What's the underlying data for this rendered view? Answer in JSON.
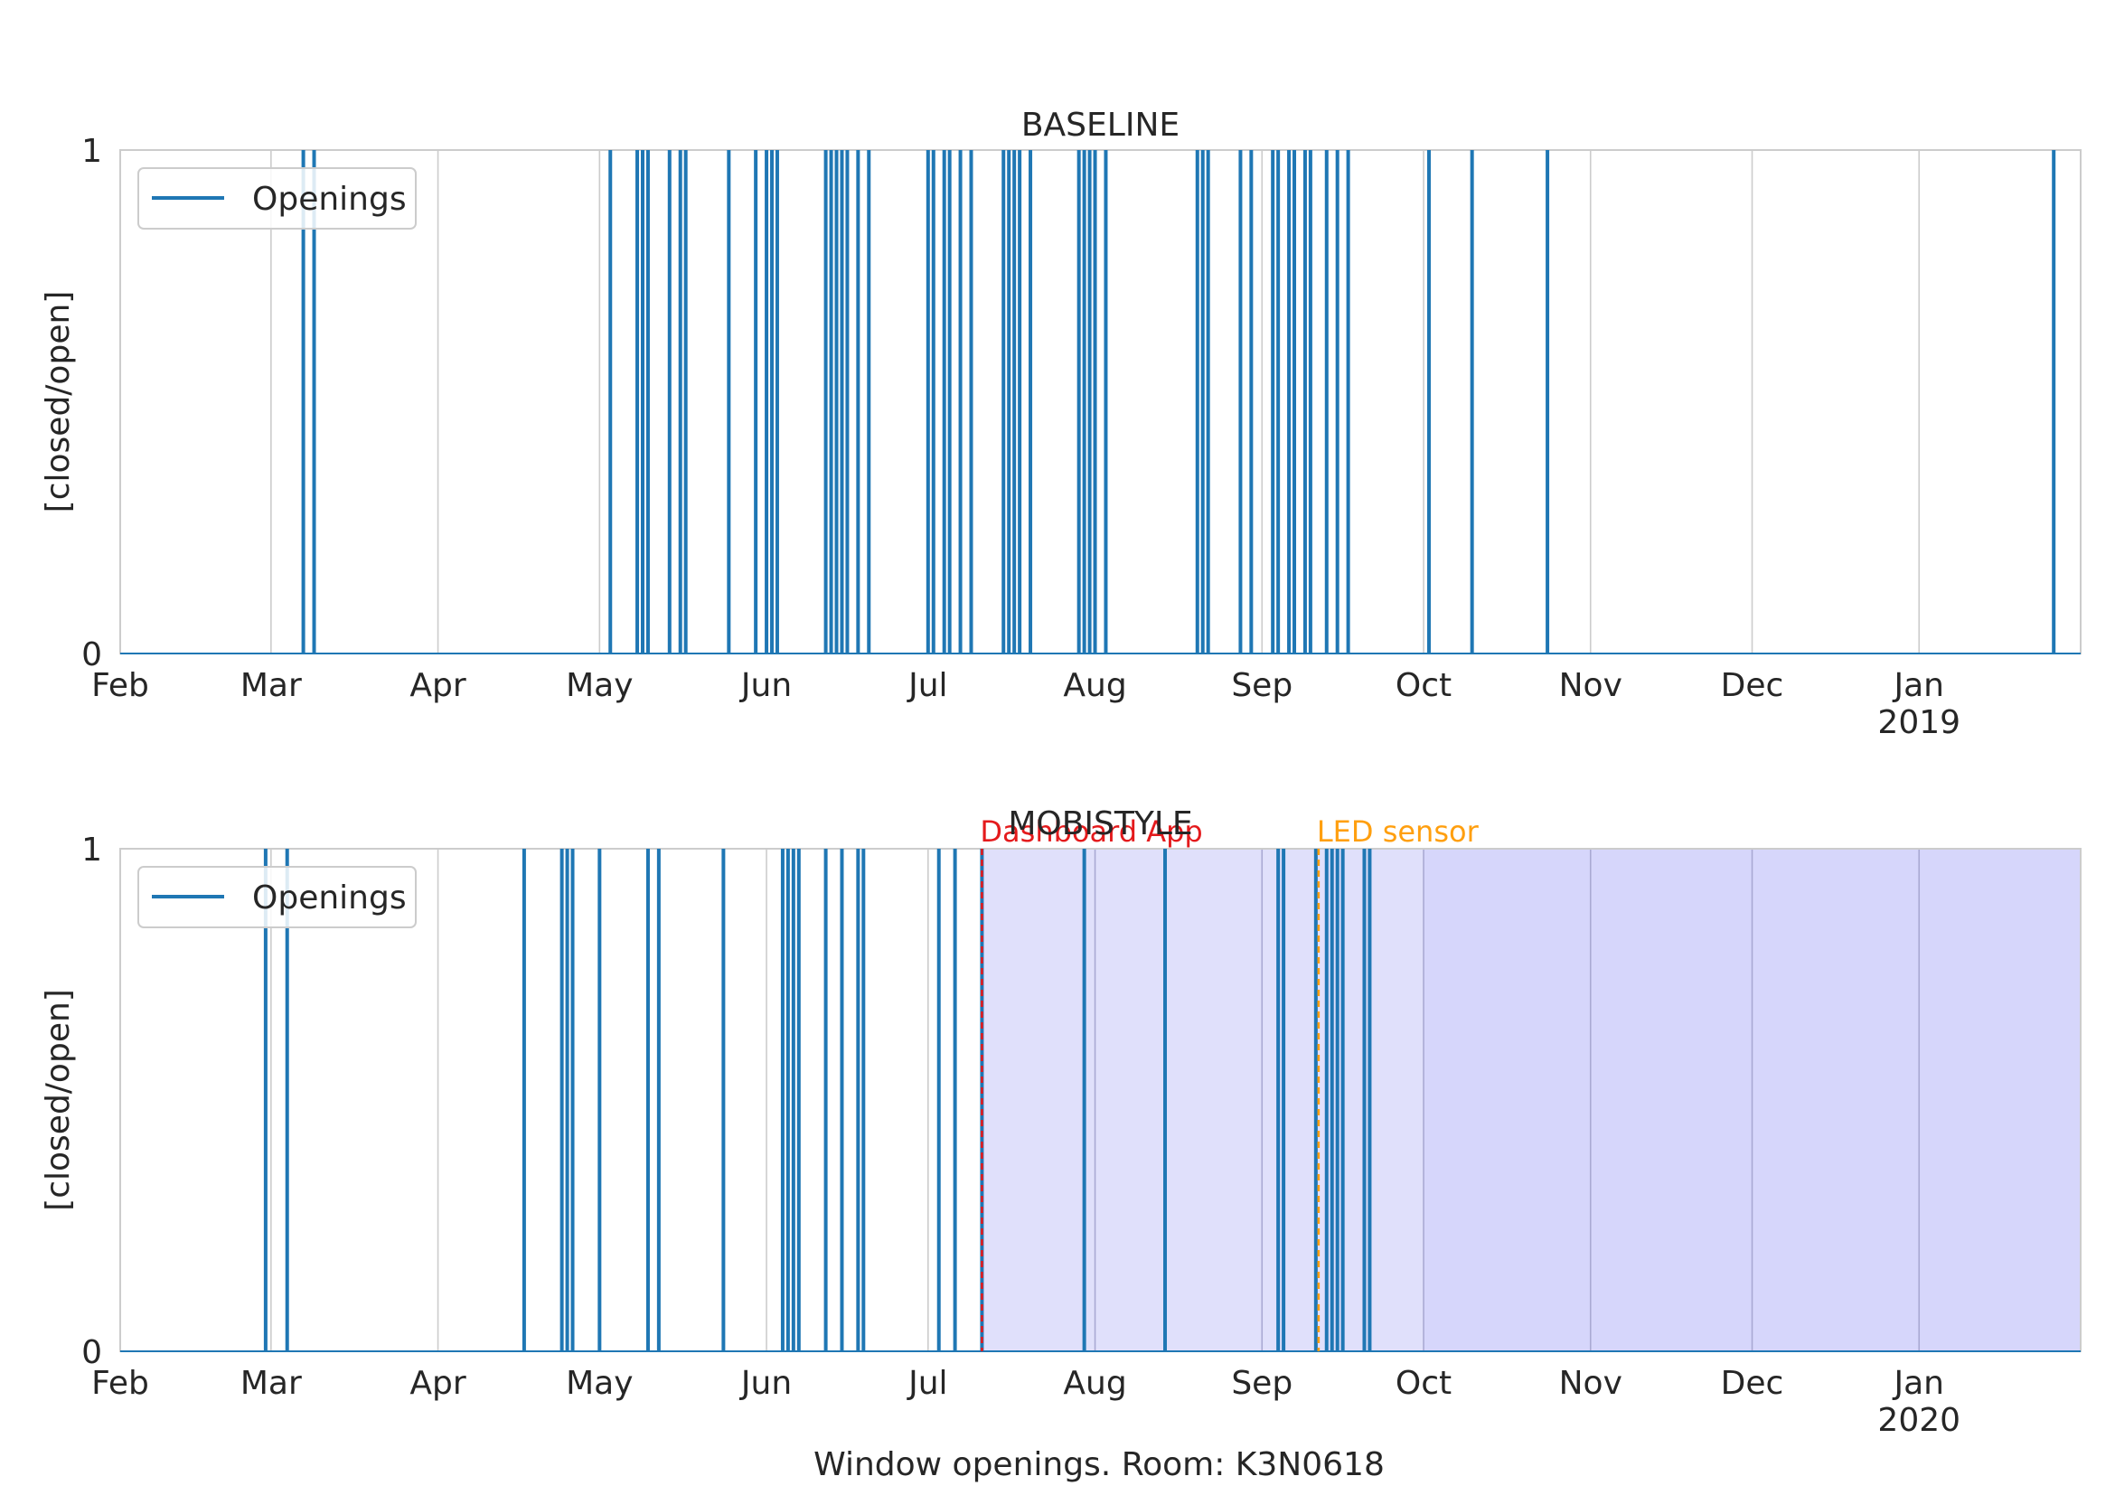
{
  "caption": "Window openings. Room: K3N0618",
  "colors": {
    "series": "#1f77b4",
    "grid": "#cccccc",
    "spine": "#cccccc",
    "dashboard_shade": "#e0e0fb",
    "led_shade": "#d6d6fb",
    "dashboard_line": "#e41a1c",
    "led_line": "#ff9f0f"
  },
  "chart_data": [
    {
      "type": "line",
      "title": "BASELINE",
      "ylabel": "[closed/open]",
      "xlabel": "",
      "ylim": [
        0,
        1
      ],
      "xlim_days": [
        0,
        364
      ],
      "yticks": [
        "0",
        "1"
      ],
      "legend": {
        "label": "Openings",
        "position": "upper-left"
      },
      "month_ticks": [
        {
          "day": 0,
          "label": "Feb",
          "sub": ""
        },
        {
          "day": 28,
          "label": "Mar",
          "sub": ""
        },
        {
          "day": 59,
          "label": "Apr",
          "sub": ""
        },
        {
          "day": 89,
          "label": "May",
          "sub": ""
        },
        {
          "day": 120,
          "label": "Jun",
          "sub": ""
        },
        {
          "day": 150,
          "label": "Jul",
          "sub": ""
        },
        {
          "day": 181,
          "label": "Aug",
          "sub": ""
        },
        {
          "day": 212,
          "label": "Sep",
          "sub": ""
        },
        {
          "day": 242,
          "label": "Oct",
          "sub": ""
        },
        {
          "day": 273,
          "label": "Nov",
          "sub": ""
        },
        {
          "day": 303,
          "label": "Dec",
          "sub": ""
        },
        {
          "day": 334,
          "label": "Jan",
          "sub": "2019"
        }
      ],
      "series": [
        {
          "name": "Openings",
          "opening_days": [
            34,
            36,
            91,
            96,
            97,
            98,
            102,
            104,
            105,
            113,
            118,
            120,
            121,
            122,
            131,
            132,
            133,
            134,
            135,
            137,
            139,
            150,
            151,
            153,
            154,
            156,
            158,
            164,
            165,
            166,
            167,
            169,
            178,
            179,
            180,
            181,
            183,
            200,
            201,
            202,
            208,
            210,
            214,
            215,
            217,
            218,
            220,
            221,
            224,
            226,
            228,
            243,
            251,
            265,
            359
          ]
        }
      ],
      "annotations": [],
      "shaded_regions": []
    },
    {
      "type": "line",
      "title": "MOBISTYLE",
      "ylabel": "[closed/open]",
      "xlabel": "",
      "ylim": [
        0,
        1
      ],
      "xlim_days": [
        0,
        364
      ],
      "yticks": [
        "0",
        "1"
      ],
      "legend": {
        "label": "Openings",
        "position": "upper-left"
      },
      "month_ticks": [
        {
          "day": 0,
          "label": "Feb",
          "sub": ""
        },
        {
          "day": 28,
          "label": "Mar",
          "sub": ""
        },
        {
          "day": 59,
          "label": "Apr",
          "sub": ""
        },
        {
          "day": 89,
          "label": "May",
          "sub": ""
        },
        {
          "day": 120,
          "label": "Jun",
          "sub": ""
        },
        {
          "day": 150,
          "label": "Jul",
          "sub": ""
        },
        {
          "day": 181,
          "label": "Aug",
          "sub": ""
        },
        {
          "day": 212,
          "label": "Sep",
          "sub": ""
        },
        {
          "day": 242,
          "label": "Oct",
          "sub": ""
        },
        {
          "day": 273,
          "label": "Nov",
          "sub": ""
        },
        {
          "day": 303,
          "label": "Dec",
          "sub": ""
        },
        {
          "day": 334,
          "label": "Jan",
          "sub": "2020"
        }
      ],
      "series": [
        {
          "name": "Openings",
          "opening_days": [
            27,
            31,
            75,
            82,
            83,
            84,
            89,
            98,
            100,
            112,
            123,
            124,
            125,
            126,
            131,
            134,
            137,
            138,
            152,
            155,
            160,
            179,
            194,
            215,
            216,
            222,
            224,
            225,
            226,
            227,
            231,
            232
          ]
        }
      ],
      "annotations": [
        {
          "label": "Dashboard App",
          "day": 160,
          "color": "#e41a1c",
          "style": "dashed"
        },
        {
          "label": "LED sensor",
          "day": 222.5,
          "color": "#ff9f0f",
          "style": "dashed"
        }
      ],
      "shaded_regions": [
        {
          "start_day": 160,
          "end_day": 242,
          "color": "#e0e0fb"
        },
        {
          "start_day": 242,
          "end_day": 364,
          "color": "#d6d6fb"
        }
      ]
    }
  ]
}
